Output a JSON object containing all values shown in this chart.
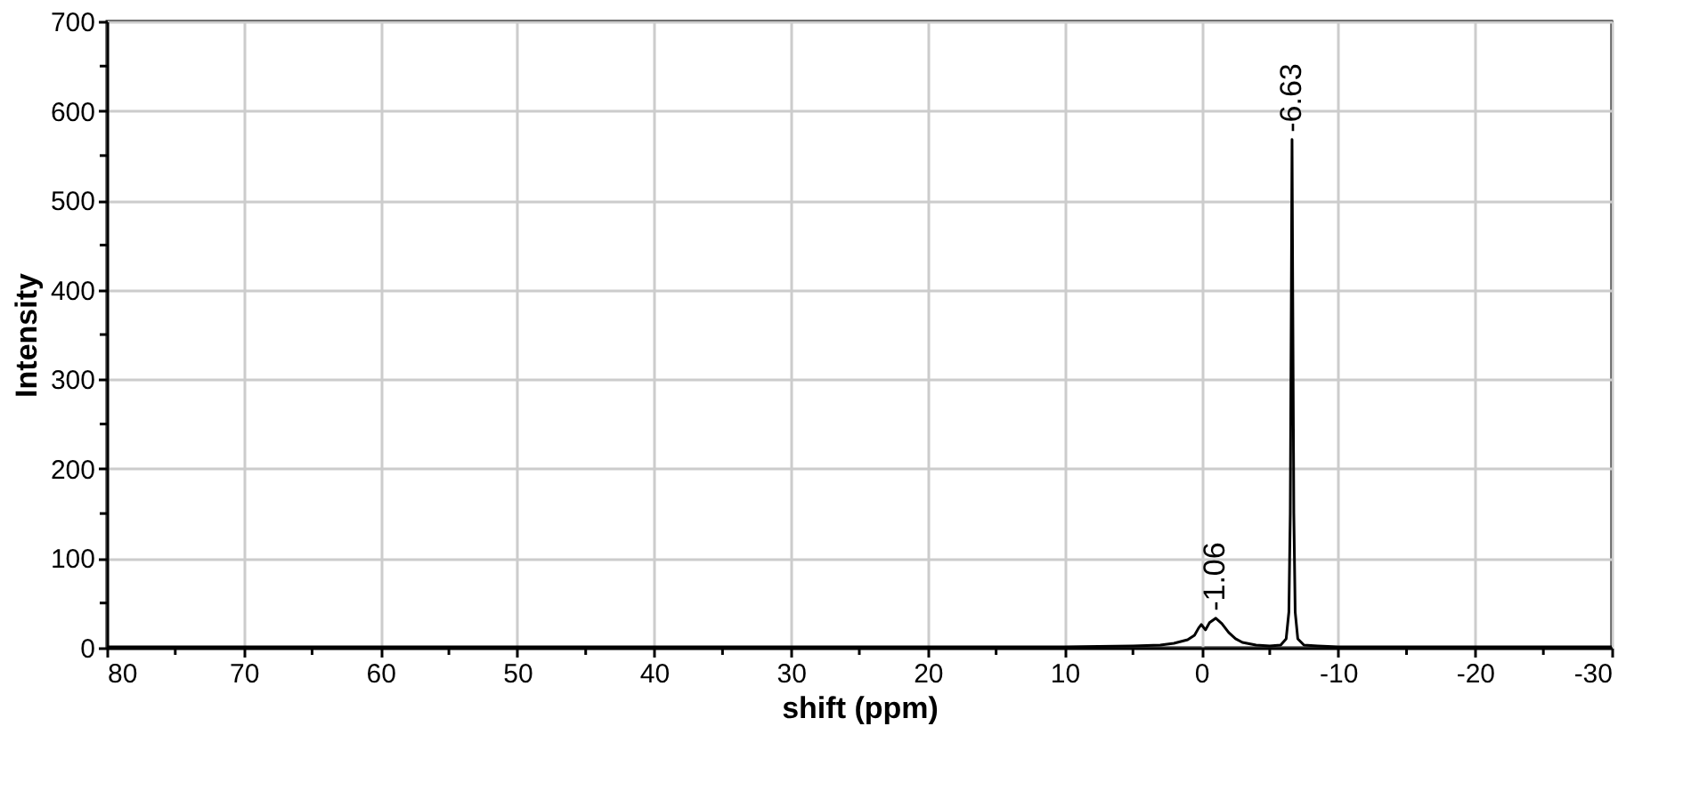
{
  "chart_data": {
    "type": "line",
    "xlabel": "shift (ppm)",
    "ylabel": "Intensity",
    "x": [
      80,
      40,
      10,
      5,
      3,
      2,
      1,
      0.5,
      0.2,
      0,
      -0.3,
      -0.6,
      -1.06,
      -1.5,
      -2,
      -2.5,
      -3,
      -4,
      -5,
      -5.8,
      -6.2,
      -6.4,
      -6.5,
      -6.58,
      -6.63,
      -6.68,
      -6.76,
      -6.86,
      -7.05,
      -7.5,
      -8.5,
      -10,
      -30
    ],
    "series": [
      {
        "color": "#000000",
        "values": [
          1,
          1,
          1,
          2,
          3,
          5,
          9,
          14,
          22,
          26,
          20,
          28,
          33,
          27,
          17,
          10,
          6,
          3,
          2,
          3,
          10,
          40,
          150,
          400,
          568,
          400,
          150,
          40,
          10,
          3,
          2,
          1,
          1
        ]
      }
    ],
    "xlim": [
      80,
      -30
    ],
    "xticks": [
      80,
      {
        "value": 75,
        "label": null
      },
      70,
      {
        "value": 65,
        "label": null
      },
      60,
      {
        "value": 55,
        "label": null
      },
      50,
      {
        "value": 45,
        "label": null
      },
      40,
      {
        "value": 35,
        "label": null
      },
      30,
      {
        "value": 25,
        "label": null
      },
      20,
      {
        "value": 15,
        "label": null
      },
      10,
      {
        "value": 5,
        "label": null
      },
      0,
      {
        "value": -5,
        "label": null
      },
      -10,
      {
        "value": -15,
        "label": null
      },
      -20,
      {
        "value": -25,
        "label": null
      },
      -30
    ],
    "ylim": [
      0,
      700
    ],
    "yticks": [
      0,
      {
        "value": 50,
        "label": null
      },
      100,
      {
        "value": 150,
        "label": null
      },
      200,
      {
        "value": 250,
        "label": null
      },
      300,
      {
        "value": 350,
        "label": null
      },
      400,
      {
        "value": 450,
        "label": null
      },
      500,
      {
        "value": 550,
        "label": null
      },
      600,
      {
        "value": 650,
        "label": null
      },
      700
    ],
    "annotations": [
      {
        "text": "-1.06",
        "x": -1.06,
        "y": 33
      },
      {
        "text": "-6.63",
        "x": -6.63,
        "y": 568
      }
    ],
    "grid": true,
    "marker": "none",
    "line_style": "solid",
    "legend": false
  }
}
